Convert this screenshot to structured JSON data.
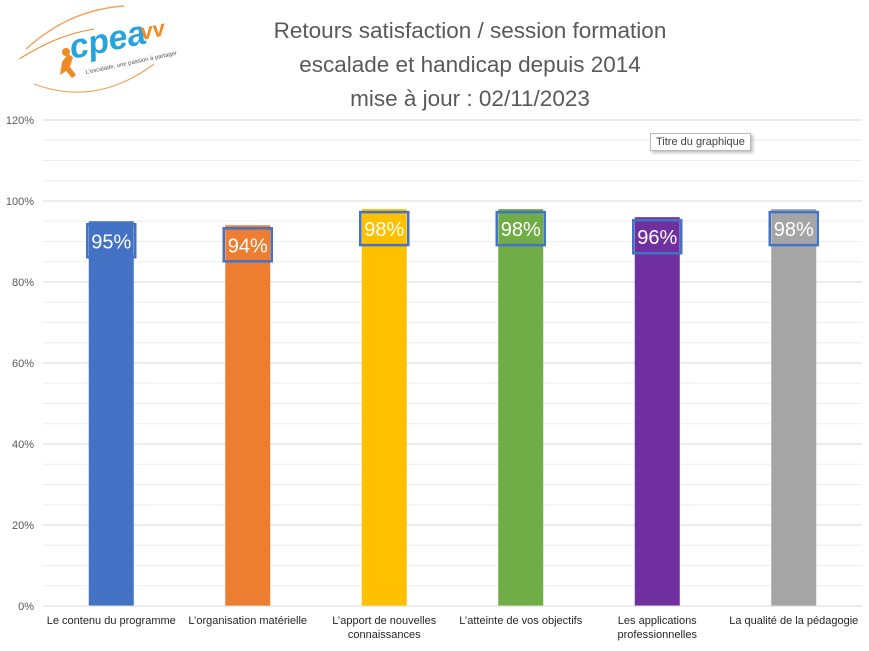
{
  "logo": {
    "text": "cpea",
    "suffix": "vv",
    "tagline": "L'escalade, une passion à partager"
  },
  "chart_data": {
    "type": "bar",
    "title": [
      "Retours satisfaction / session formation",
      "escalade et handicap depuis 2014",
      "mise à jour : 02/11/2023"
    ],
    "categories": [
      "Le contenu du programme",
      "L’organisation matérielle",
      "L’apport de nouvelles connaissances",
      "L’atteinte de vos objectifs",
      "Les applications professionnelles",
      "La qualité de la pédagogie"
    ],
    "category_lines": [
      [
        "Le contenu du programme"
      ],
      [
        "L’organisation matérielle"
      ],
      [
        "L’apport de nouvelles",
        "connaissances"
      ],
      [
        "L’atteinte de vos objectifs"
      ],
      [
        "Les applications",
        "professionnelles"
      ],
      [
        "La qualité de la pédagogie"
      ]
    ],
    "values": [
      95,
      94,
      98,
      98,
      96,
      98
    ],
    "data_labels": [
      "95%",
      "94%",
      "98%",
      "98%",
      "96%",
      "98%"
    ],
    "colors": [
      "#4472c4",
      "#ed7d31",
      "#ffc000",
      "#70ad47",
      "#7030a0",
      "#a5a5a5"
    ],
    "ylim": [
      0,
      120
    ],
    "yticks": [
      "0%",
      "20%",
      "40%",
      "60%",
      "80%",
      "100%",
      "120%"
    ],
    "grid": true,
    "label_box_color": "#4472c4"
  },
  "tooltip": "Titre du graphique"
}
